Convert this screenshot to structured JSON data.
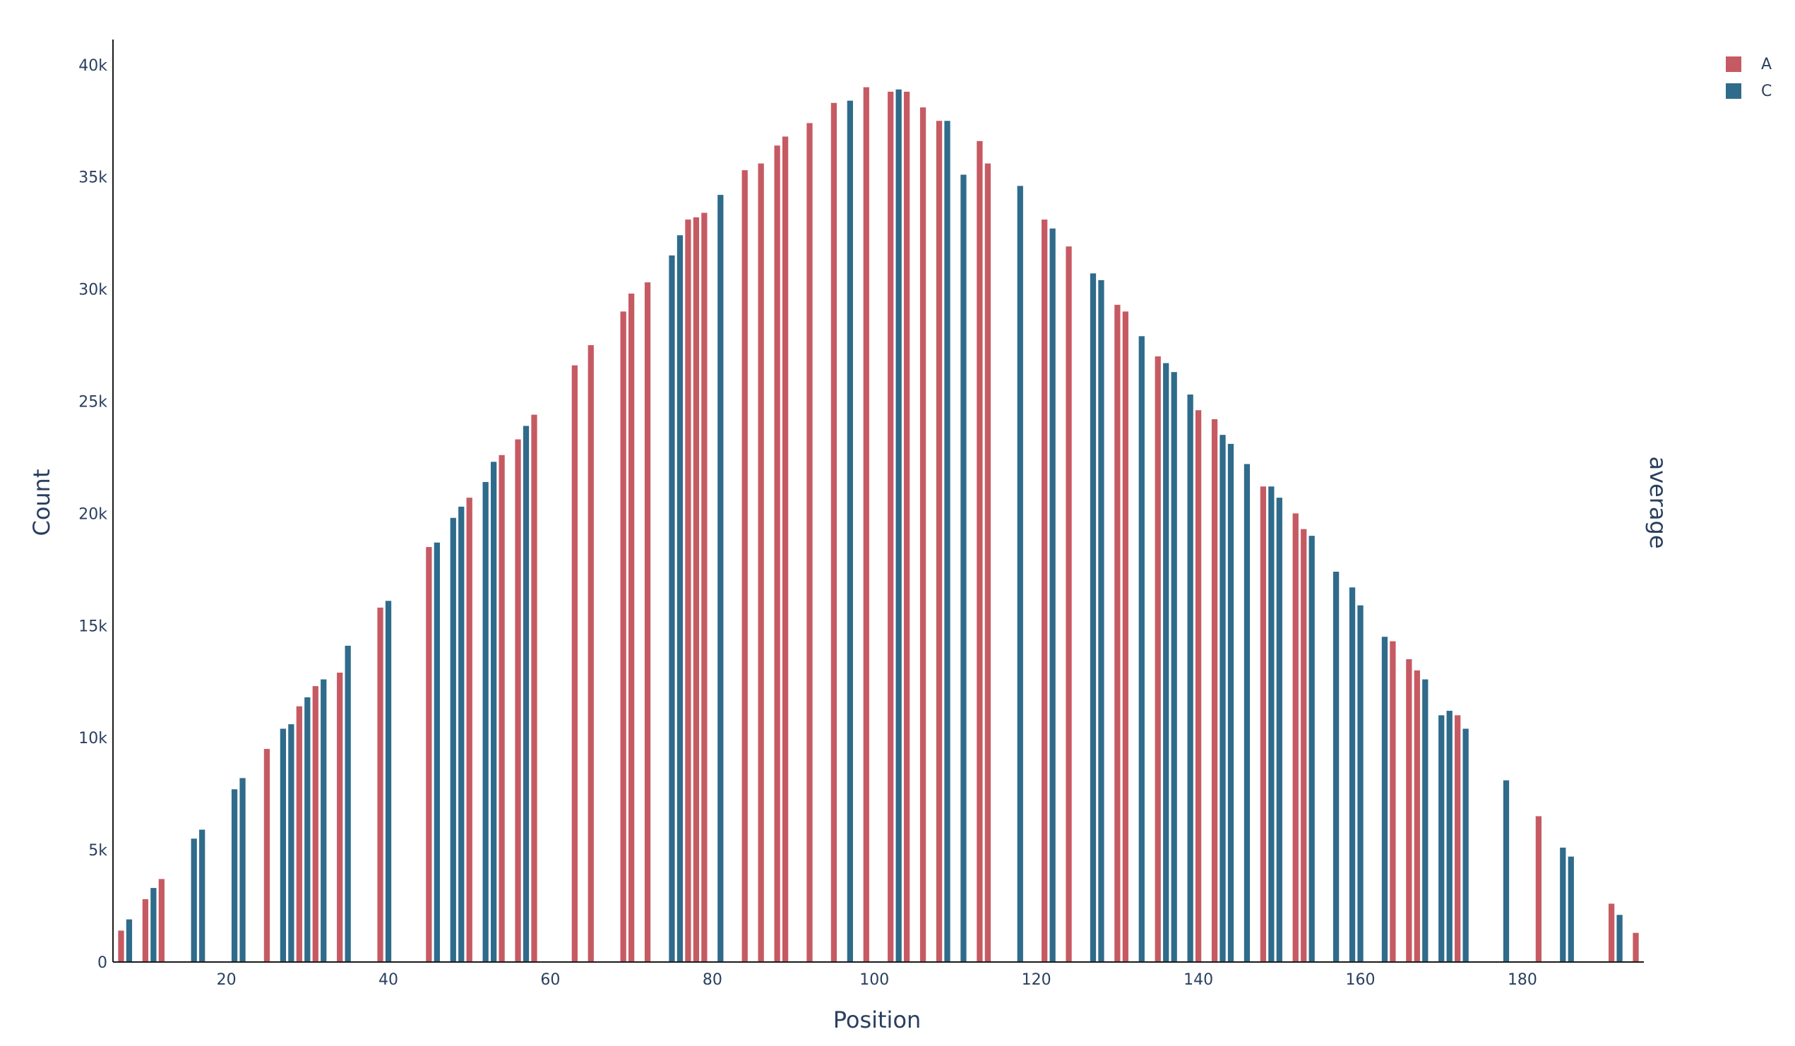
{
  "chart_data": {
    "type": "bar",
    "xlabel": "Position",
    "ylabel": "Count",
    "right_label": "average",
    "xlim": [
      6,
      195
    ],
    "ylim": [
      0,
      41000
    ],
    "xticks": [
      20,
      40,
      60,
      80,
      100,
      120,
      140,
      160,
      180
    ],
    "yticks": [
      {
        "value": 0,
        "label": "0"
      },
      {
        "value": 5000,
        "label": "5k"
      },
      {
        "value": 10000,
        "label": "10k"
      },
      {
        "value": 15000,
        "label": "15k"
      },
      {
        "value": 20000,
        "label": "20k"
      },
      {
        "value": 25000,
        "label": "25k"
      },
      {
        "value": 30000,
        "label": "30k"
      },
      {
        "value": 35000,
        "label": "35k"
      },
      {
        "value": 40000,
        "label": "40k"
      }
    ],
    "legend_position": "top-right",
    "series": [
      {
        "name": "A",
        "color": "#c65a63",
        "points": [
          [
            7,
            1400
          ],
          [
            10,
            2800
          ],
          [
            12,
            3700
          ],
          [
            25,
            9500
          ],
          [
            29,
            11400
          ],
          [
            31,
            12300
          ],
          [
            34,
            12900
          ],
          [
            39,
            15800
          ],
          [
            45,
            18500
          ],
          [
            50,
            20700
          ],
          [
            54,
            22600
          ],
          [
            56,
            23300
          ],
          [
            58,
            24400
          ],
          [
            63,
            26600
          ],
          [
            65,
            27500
          ],
          [
            69,
            29000
          ],
          [
            70,
            29800
          ],
          [
            72,
            30300
          ],
          [
            77,
            33100
          ],
          [
            78,
            33200
          ],
          [
            79,
            33400
          ],
          [
            84,
            35300
          ],
          [
            86,
            35600
          ],
          [
            88,
            36400
          ],
          [
            89,
            36800
          ],
          [
            92,
            37400
          ],
          [
            95,
            38300
          ],
          [
            99,
            39000
          ],
          [
            102,
            38800
          ],
          [
            104,
            38800
          ],
          [
            106,
            38100
          ],
          [
            108,
            37500
          ],
          [
            113,
            36600
          ],
          [
            114,
            35600
          ],
          [
            121,
            33100
          ],
          [
            124,
            31900
          ],
          [
            130,
            29300
          ],
          [
            131,
            29000
          ],
          [
            135,
            27000
          ],
          [
            140,
            24600
          ],
          [
            142,
            24200
          ],
          [
            148,
            21200
          ],
          [
            152,
            20000
          ],
          [
            153,
            19300
          ],
          [
            164,
            14300
          ],
          [
            166,
            13500
          ],
          [
            167,
            13000
          ],
          [
            172,
            11000
          ],
          [
            182,
            6500
          ],
          [
            191,
            2600
          ],
          [
            194,
            1300
          ]
        ]
      },
      {
        "name": "C",
        "color": "#2f6b8b",
        "points": [
          [
            8,
            1900
          ],
          [
            11,
            3300
          ],
          [
            16,
            5500
          ],
          [
            17,
            5900
          ],
          [
            21,
            7700
          ],
          [
            22,
            8200
          ],
          [
            27,
            10400
          ],
          [
            28,
            10600
          ],
          [
            30,
            11800
          ],
          [
            32,
            12600
          ],
          [
            35,
            14100
          ],
          [
            40,
            16100
          ],
          [
            46,
            18700
          ],
          [
            48,
            19800
          ],
          [
            49,
            20300
          ],
          [
            52,
            21400
          ],
          [
            53,
            22300
          ],
          [
            57,
            23900
          ],
          [
            75,
            31500
          ],
          [
            76,
            32400
          ],
          [
            81,
            34200
          ],
          [
            97,
            38400
          ],
          [
            103,
            38900
          ],
          [
            109,
            37500
          ],
          [
            111,
            35100
          ],
          [
            118,
            34600
          ],
          [
            122,
            32700
          ],
          [
            127,
            30700
          ],
          [
            128,
            30400
          ],
          [
            133,
            27900
          ],
          [
            136,
            26700
          ],
          [
            137,
            26300
          ],
          [
            139,
            25300
          ],
          [
            143,
            23500
          ],
          [
            144,
            23100
          ],
          [
            146,
            22200
          ],
          [
            149,
            21200
          ],
          [
            150,
            20700
          ],
          [
            154,
            19000
          ],
          [
            157,
            17400
          ],
          [
            159,
            16700
          ],
          [
            160,
            15900
          ],
          [
            163,
            14500
          ],
          [
            168,
            12600
          ],
          [
            170,
            11000
          ],
          [
            171,
            11200
          ],
          [
            173,
            10400
          ],
          [
            178,
            8100
          ],
          [
            185,
            5100
          ],
          [
            186,
            4700
          ],
          [
            192,
            2100
          ]
        ]
      }
    ]
  }
}
